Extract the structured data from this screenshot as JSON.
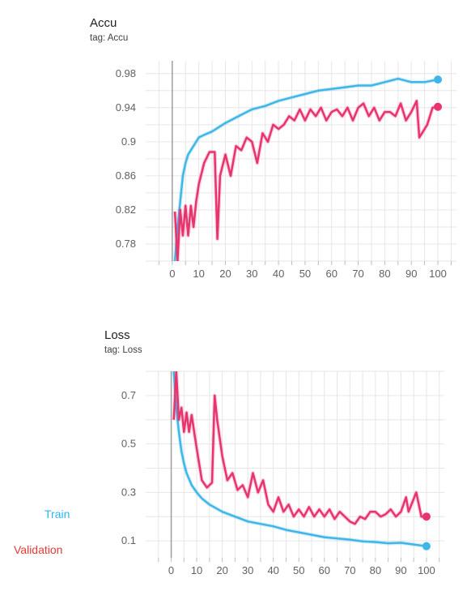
{
  "legend": [
    {
      "label": "Train",
      "color": "#29b6f6"
    },
    {
      "label": "Validation",
      "color": "#e53935"
    }
  ],
  "series_colors": {
    "train": "#3fb6e8",
    "validation": "#e8336d"
  },
  "chart_data": [
    {
      "type": "line",
      "title": "Accu",
      "subtitle": "tag: Accu",
      "xlabel": "",
      "ylabel": "",
      "xlim": [
        -10,
        107
      ],
      "ylim": [
        0.76,
        0.995
      ],
      "x_ticks": [
        0,
        10,
        20,
        30,
        40,
        50,
        60,
        70,
        80,
        90,
        100
      ],
      "y_ticks": [
        0.78,
        0.82,
        0.86,
        0.9,
        0.94,
        0.98
      ],
      "y_tick_labels": [
        "0.78",
        "0.82",
        "0.86",
        "0.9",
        "0.94",
        "0.98"
      ],
      "grid": true,
      "series": [
        {
          "key": "train",
          "x": [
            1,
            2,
            3,
            4,
            5,
            6,
            8,
            10,
            12,
            15,
            20,
            25,
            30,
            35,
            40,
            45,
            50,
            55,
            60,
            65,
            70,
            75,
            80,
            85,
            90,
            95,
            100
          ],
          "values": [
            0.76,
            0.8,
            0.83,
            0.86,
            0.875,
            0.885,
            0.895,
            0.905,
            0.908,
            0.912,
            0.922,
            0.93,
            0.938,
            0.942,
            0.948,
            0.952,
            0.956,
            0.96,
            0.962,
            0.964,
            0.966,
            0.966,
            0.97,
            0.974,
            0.97,
            0.97,
            0.973
          ]
        },
        {
          "key": "validation",
          "x": [
            1,
            2,
            3,
            4,
            5,
            6,
            7,
            8,
            9,
            10,
            12,
            14,
            16,
            17,
            18,
            20,
            22,
            24,
            26,
            28,
            30,
            32,
            34,
            36,
            38,
            40,
            42,
            44,
            46,
            48,
            50,
            52,
            54,
            56,
            58,
            60,
            62,
            64,
            66,
            68,
            70,
            72,
            74,
            76,
            78,
            80,
            82,
            84,
            86,
            88,
            90,
            92,
            93,
            96,
            98,
            100
          ],
          "values": [
            0.818,
            0.76,
            0.82,
            0.79,
            0.825,
            0.79,
            0.825,
            0.8,
            0.83,
            0.85,
            0.875,
            0.888,
            0.888,
            0.786,
            0.86,
            0.885,
            0.86,
            0.895,
            0.89,
            0.905,
            0.9,
            0.875,
            0.91,
            0.9,
            0.92,
            0.915,
            0.92,
            0.93,
            0.925,
            0.938,
            0.925,
            0.938,
            0.93,
            0.94,
            0.925,
            0.935,
            0.938,
            0.93,
            0.94,
            0.925,
            0.94,
            0.945,
            0.93,
            0.94,
            0.925,
            0.935,
            0.935,
            0.93,
            0.945,
            0.925,
            0.935,
            0.948,
            0.905,
            0.92,
            0.94,
            0.941
          ]
        }
      ]
    },
    {
      "type": "line",
      "title": "Loss",
      "subtitle": "tag: Loss",
      "xlabel": "",
      "ylabel": "",
      "xlim": [
        -10,
        107
      ],
      "ylim": [
        0.03,
        0.8
      ],
      "x_ticks": [
        0,
        10,
        20,
        30,
        40,
        50,
        60,
        70,
        80,
        90,
        100
      ],
      "y_ticks": [
        0.1,
        0.3,
        0.5,
        0.7
      ],
      "y_tick_labels": [
        "0.1",
        "0.3",
        "0.5",
        "0.7"
      ],
      "grid": true,
      "series": [
        {
          "key": "train",
          "x": [
            1,
            2,
            3,
            4,
            5,
            6,
            8,
            10,
            12,
            15,
            20,
            25,
            30,
            35,
            40,
            45,
            50,
            55,
            60,
            65,
            70,
            75,
            80,
            85,
            90,
            95,
            100
          ],
          "values": [
            0.8,
            0.65,
            0.55,
            0.47,
            0.42,
            0.38,
            0.33,
            0.3,
            0.275,
            0.25,
            0.22,
            0.2,
            0.18,
            0.17,
            0.16,
            0.145,
            0.135,
            0.125,
            0.115,
            0.11,
            0.105,
            0.098,
            0.095,
            0.09,
            0.092,
            0.085,
            0.078
          ]
        },
        {
          "key": "validation",
          "x": [
            1,
            2,
            3,
            4,
            5,
            6,
            7,
            8,
            9,
            10,
            12,
            14,
            16,
            17,
            18,
            20,
            22,
            24,
            26,
            28,
            30,
            32,
            34,
            36,
            38,
            40,
            42,
            44,
            46,
            48,
            50,
            52,
            54,
            56,
            58,
            60,
            62,
            64,
            66,
            68,
            70,
            72,
            74,
            76,
            78,
            80,
            82,
            84,
            86,
            88,
            90,
            92,
            93,
            96,
            98,
            100
          ],
          "values": [
            0.6,
            0.8,
            0.6,
            0.65,
            0.55,
            0.63,
            0.55,
            0.62,
            0.55,
            0.48,
            0.35,
            0.32,
            0.34,
            0.7,
            0.6,
            0.45,
            0.35,
            0.38,
            0.31,
            0.33,
            0.28,
            0.38,
            0.3,
            0.35,
            0.25,
            0.22,
            0.28,
            0.22,
            0.25,
            0.2,
            0.23,
            0.2,
            0.24,
            0.2,
            0.23,
            0.2,
            0.23,
            0.19,
            0.22,
            0.2,
            0.18,
            0.17,
            0.2,
            0.19,
            0.22,
            0.22,
            0.2,
            0.21,
            0.23,
            0.2,
            0.22,
            0.28,
            0.22,
            0.3,
            0.2,
            0.2
          ]
        }
      ]
    }
  ]
}
